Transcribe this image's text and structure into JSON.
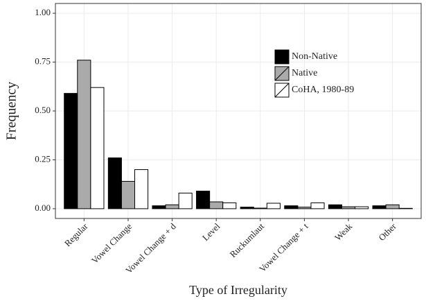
{
  "chart_data": {
    "type": "bar",
    "x_label": "Type of Irregularity",
    "y_label": "Frequency",
    "categories": [
      "Regular",
      "Vowel Change",
      "Vowel Change + d",
      "Level",
      "Ruckumlaut",
      "Vowel Change + t",
      "Weak",
      "Other"
    ],
    "series": [
      {
        "name": "Non-Native",
        "color": "#000000",
        "values": [
          0.59,
          0.26,
          0.015,
          0.09,
          0.008,
          0.015,
          0.02,
          0.015
        ]
      },
      {
        "name": "Native",
        "color": "#aaaaaa",
        "values": [
          0.76,
          0.14,
          0.02,
          0.035,
          0.003,
          0.008,
          0.01,
          0.02
        ]
      },
      {
        "name": "CoHA, 1980-89",
        "color": "#ffffff",
        "values": [
          0.62,
          0.2,
          0.08,
          0.03,
          0.028,
          0.03,
          0.01,
          0.002
        ]
      }
    ],
    "ylim": [
      -0.05,
      1.05
    ],
    "yticks": [
      {
        "value": 0,
        "label": "0.00"
      },
      {
        "value": 0.25,
        "label": "0.25"
      },
      {
        "value": 0.5,
        "label": "0.50"
      },
      {
        "value": 0.75,
        "label": "0.75"
      },
      {
        "value": 1,
        "label": "1.00"
      }
    ],
    "grid": true
  }
}
